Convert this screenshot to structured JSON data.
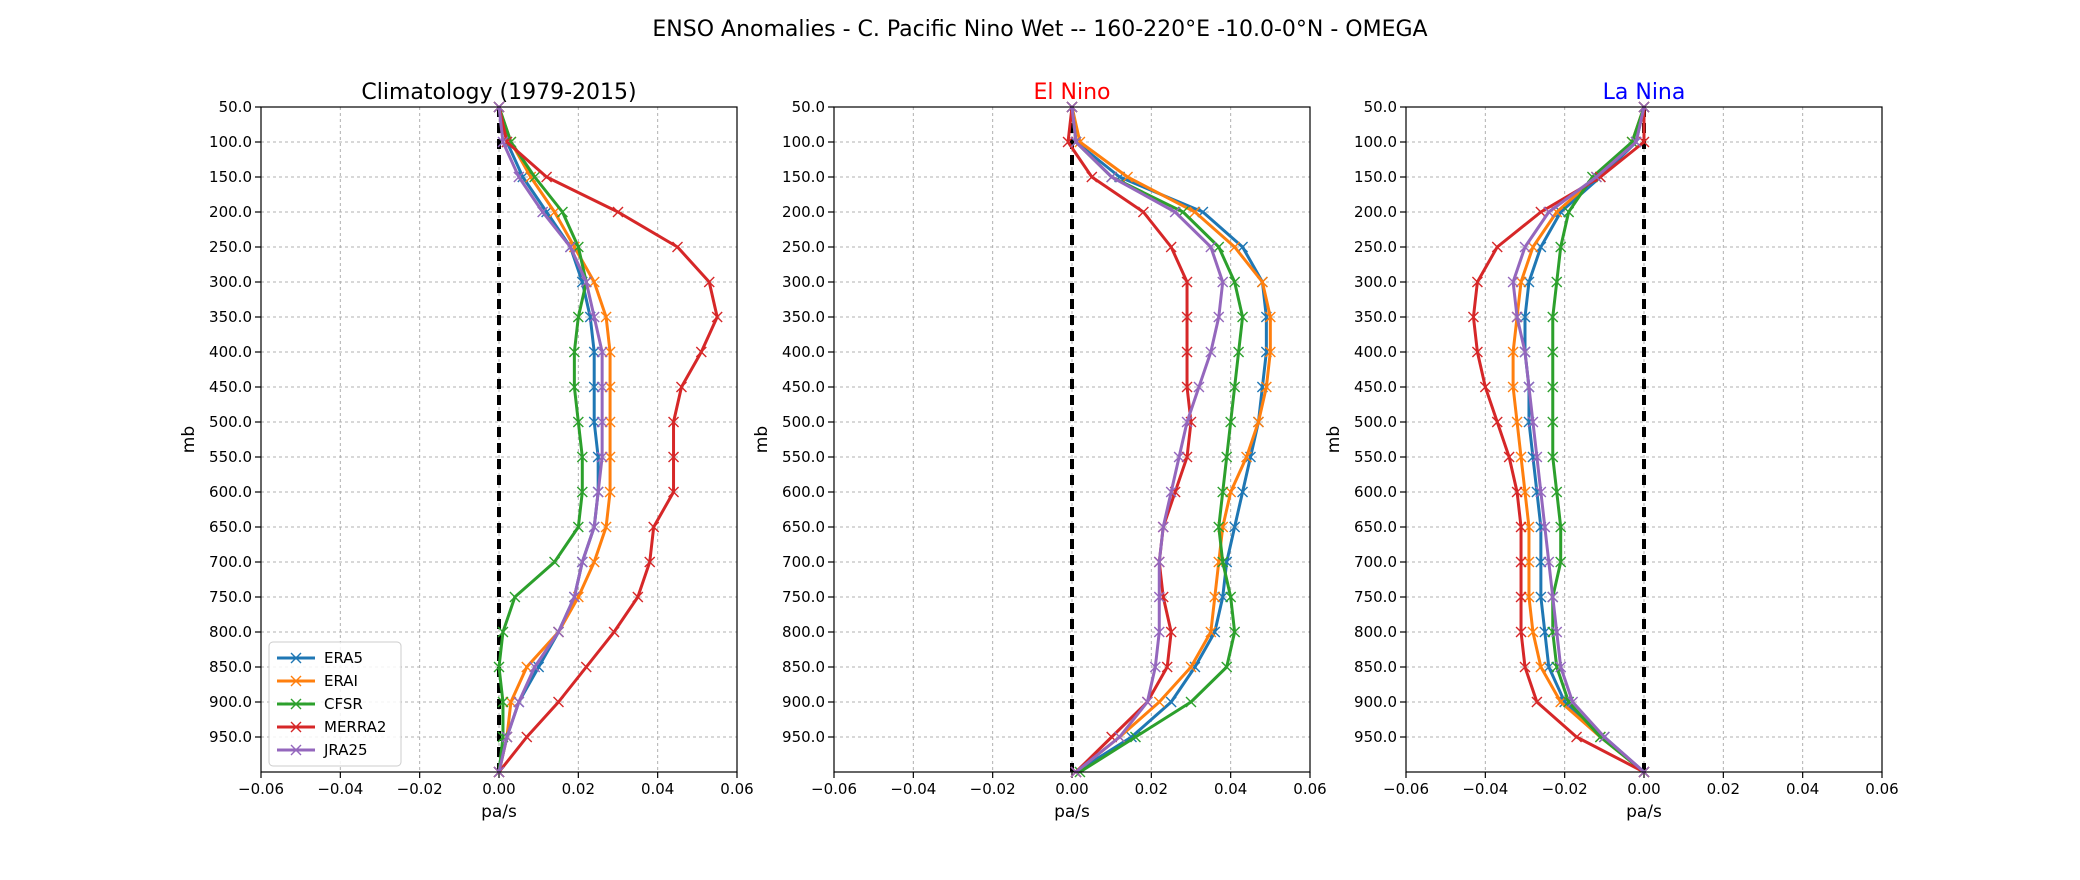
{
  "suptitle": "ENSO Anomalies - C. Pacific Nino Wet -- 160-220°E -10.0-0°N - OMEGA",
  "colors": {
    "ERA5": "#1f77b4",
    "ERAI": "#ff7f0e",
    "CFSR": "#2ca02c",
    "MERRA2": "#d62728",
    "JRA25": "#9467bd",
    "elnino_title": "#ff0000",
    "lanina_title": "#0000ff"
  },
  "legend": [
    "ERA5",
    "ERAI",
    "CFSR",
    "MERRA2",
    "JRA25"
  ],
  "chart_data": [
    {
      "type": "line",
      "title": "Climatology (1979-2015)",
      "title_color": "#000000",
      "xlabel": "pa/s",
      "ylabel": "mb",
      "xlim": [
        -0.06,
        0.06
      ],
      "ylim": [
        1000,
        50
      ],
      "xticks": [
        "−0.06",
        "−0.04",
        "−0.02",
        "0.00",
        "0.02",
        "0.04",
        "0.06"
      ],
      "yticks": [
        "50.0",
        "100.0",
        "150.0",
        "200.0",
        "250.0",
        "300.0",
        "350.0",
        "400.0",
        "450.0",
        "500.0",
        "550.0",
        "600.0",
        "650.0",
        "700.0",
        "750.0",
        "800.0",
        "850.0",
        "900.0",
        "950.0"
      ],
      "grid": true,
      "legend_loc": "lower-left",
      "levels": [
        1000,
        950,
        900,
        850,
        800,
        750,
        700,
        650,
        600,
        550,
        500,
        450,
        400,
        350,
        300,
        250,
        200,
        150,
        100,
        50
      ],
      "series": [
        {
          "name": "ERA5",
          "values": [
            0.0,
            0.002,
            0.005,
            0.01,
            0.015,
            0.019,
            0.021,
            0.024,
            0.025,
            0.025,
            0.024,
            0.024,
            0.024,
            0.023,
            0.021,
            0.018,
            0.012,
            0.006,
            0.002,
            0.0
          ]
        },
        {
          "name": "ERAI",
          "values": [
            0.0,
            0.002,
            0.003,
            0.007,
            0.015,
            0.02,
            0.024,
            0.027,
            0.028,
            0.028,
            0.028,
            0.028,
            0.028,
            0.027,
            0.024,
            0.019,
            0.014,
            0.008,
            0.003,
            0.0
          ]
        },
        {
          "name": "CFSR",
          "values": [
            0.0,
            0.001,
            0.001,
            0.0,
            0.001,
            0.004,
            0.014,
            0.02,
            0.021,
            0.021,
            0.02,
            0.019,
            0.019,
            0.02,
            0.022,
            0.02,
            0.016,
            0.009,
            0.003,
            0.0
          ]
        },
        {
          "name": "MERRA2",
          "values": [
            0.0,
            0.007,
            0.015,
            0.022,
            0.029,
            0.035,
            0.038,
            0.039,
            0.044,
            0.044,
            0.044,
            0.046,
            0.051,
            0.055,
            0.053,
            0.045,
            0.03,
            0.012,
            0.002,
            0.0
          ]
        },
        {
          "name": "JRA25",
          "values": [
            0.0,
            0.002,
            0.005,
            0.009,
            0.015,
            0.019,
            0.021,
            0.024,
            0.025,
            0.026,
            0.026,
            0.026,
            0.026,
            0.024,
            0.022,
            0.018,
            0.011,
            0.005,
            0.001,
            0.0
          ]
        }
      ]
    },
    {
      "type": "line",
      "title": "El Nino",
      "title_color": "#ff0000",
      "xlabel": "pa/s",
      "ylabel": "mb",
      "xlim": [
        -0.06,
        0.06
      ],
      "ylim": [
        1000,
        50
      ],
      "xticks": [
        "−0.06",
        "−0.04",
        "−0.02",
        "0.00",
        "0.02",
        "0.04",
        "0.06"
      ],
      "yticks": [
        "50.0",
        "100.0",
        "150.0",
        "200.0",
        "250.0",
        "300.0",
        "350.0",
        "400.0",
        "450.0",
        "500.0",
        "550.0",
        "600.0",
        "650.0",
        "700.0",
        "750.0",
        "800.0",
        "850.0",
        "900.0",
        "950.0"
      ],
      "grid": true,
      "levels": [
        1000,
        950,
        900,
        850,
        800,
        750,
        700,
        650,
        600,
        550,
        500,
        450,
        400,
        350,
        300,
        250,
        200,
        150,
        100,
        50
      ],
      "series": [
        {
          "name": "ERA5",
          "values": [
            0.001,
            0.015,
            0.025,
            0.031,
            0.036,
            0.038,
            0.039,
            0.041,
            0.043,
            0.045,
            0.047,
            0.048,
            0.049,
            0.049,
            0.048,
            0.043,
            0.033,
            0.012,
            0.001,
            0.0
          ]
        },
        {
          "name": "ERAI",
          "values": [
            0.001,
            0.012,
            0.022,
            0.03,
            0.035,
            0.036,
            0.037,
            0.038,
            0.04,
            0.044,
            0.047,
            0.049,
            0.05,
            0.05,
            0.048,
            0.041,
            0.031,
            0.014,
            0.002,
            0.0
          ]
        },
        {
          "name": "CFSR",
          "values": [
            0.002,
            0.016,
            0.03,
            0.039,
            0.041,
            0.04,
            0.038,
            0.037,
            0.038,
            0.039,
            0.04,
            0.041,
            0.042,
            0.043,
            0.041,
            0.037,
            0.028,
            0.01,
            0.001,
            0.0
          ]
        },
        {
          "name": "MERRA2",
          "values": [
            0.001,
            0.01,
            0.019,
            0.024,
            0.025,
            0.023,
            0.022,
            0.023,
            0.026,
            0.029,
            0.03,
            0.029,
            0.029,
            0.029,
            0.029,
            0.025,
            0.018,
            0.005,
            -0.001,
            0.0
          ]
        },
        {
          "name": "JRA25",
          "values": [
            0.001,
            0.012,
            0.019,
            0.021,
            0.022,
            0.022,
            0.022,
            0.023,
            0.025,
            0.027,
            0.029,
            0.032,
            0.035,
            0.037,
            0.038,
            0.035,
            0.026,
            0.01,
            0.001,
            0.0
          ]
        }
      ]
    },
    {
      "type": "line",
      "title": "La Nina",
      "title_color": "#0000ff",
      "xlabel": "pa/s",
      "ylabel": "mb",
      "xlim": [
        -0.06,
        0.06
      ],
      "ylim": [
        1000,
        50
      ],
      "xticks": [
        "−0.06",
        "−0.04",
        "−0.02",
        "0.00",
        "0.02",
        "0.04",
        "0.06"
      ],
      "yticks": [
        "50.0",
        "100.0",
        "150.0",
        "200.0",
        "250.0",
        "300.0",
        "350.0",
        "400.0",
        "450.0",
        "500.0",
        "550.0",
        "600.0",
        "650.0",
        "700.0",
        "750.0",
        "800.0",
        "850.0",
        "900.0",
        "950.0"
      ],
      "grid": true,
      "levels": [
        1000,
        950,
        900,
        850,
        800,
        750,
        700,
        650,
        600,
        550,
        500,
        450,
        400,
        350,
        300,
        250,
        200,
        150,
        100,
        50
      ],
      "series": [
        {
          "name": "ERA5",
          "values": [
            0.0,
            -0.01,
            -0.02,
            -0.024,
            -0.025,
            -0.026,
            -0.026,
            -0.026,
            -0.027,
            -0.028,
            -0.029,
            -0.029,
            -0.03,
            -0.03,
            -0.029,
            -0.026,
            -0.021,
            -0.011,
            -0.002,
            0.0
          ]
        },
        {
          "name": "ERAI",
          "values": [
            0.0,
            -0.011,
            -0.021,
            -0.026,
            -0.028,
            -0.029,
            -0.029,
            -0.029,
            -0.03,
            -0.031,
            -0.032,
            -0.033,
            -0.033,
            -0.032,
            -0.031,
            -0.028,
            -0.022,
            -0.012,
            -0.003,
            0.0
          ]
        },
        {
          "name": "CFSR",
          "values": [
            0.0,
            -0.011,
            -0.019,
            -0.022,
            -0.023,
            -0.023,
            -0.021,
            -0.021,
            -0.022,
            -0.023,
            -0.023,
            -0.023,
            -0.023,
            -0.023,
            -0.022,
            -0.021,
            -0.019,
            -0.013,
            -0.003,
            0.0
          ]
        },
        {
          "name": "MERRA2",
          "values": [
            0.0,
            -0.017,
            -0.027,
            -0.03,
            -0.031,
            -0.031,
            -0.031,
            -0.031,
            -0.032,
            -0.034,
            -0.037,
            -0.04,
            -0.042,
            -0.043,
            -0.042,
            -0.037,
            -0.026,
            -0.011,
            0.0,
            0.0
          ]
        },
        {
          "name": "JRA25",
          "values": [
            0.0,
            -0.01,
            -0.018,
            -0.021,
            -0.022,
            -0.023,
            -0.024,
            -0.025,
            -0.026,
            -0.027,
            -0.028,
            -0.029,
            -0.03,
            -0.032,
            -0.033,
            -0.03,
            -0.024,
            -0.012,
            -0.002,
            0.0
          ]
        }
      ]
    }
  ]
}
